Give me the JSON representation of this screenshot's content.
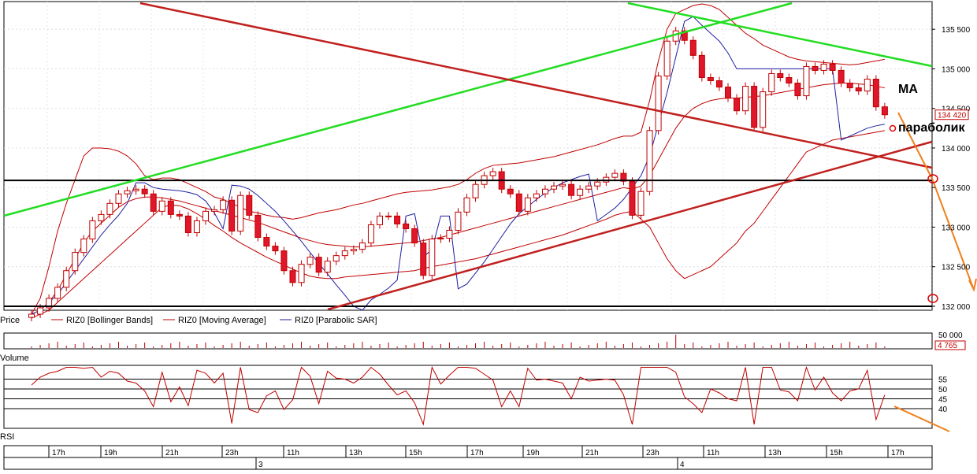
{
  "legend": {
    "price_label": "Price",
    "items": [
      {
        "label": "RIZ0 [Bollinger Bands]",
        "color": "#c00000"
      },
      {
        "label": "RIZ0 [Moving Average]",
        "color": "#c00000"
      },
      {
        "label": "RIZ0 [Parabolic SAR]",
        "color": "#1f1fa0"
      }
    ]
  },
  "annotations": {
    "ma": "MA",
    "parabolic": "параболик"
  },
  "price_axis": {
    "ticks": [
      "135 500",
      "135 000",
      "134 500",
      "134 000",
      "133 500",
      "133 000",
      "132 500",
      "132 000"
    ],
    "last_value": "134 420"
  },
  "volume_panel": {
    "label": "Volume",
    "ticks": [
      "50 000"
    ],
    "last_value": "4 765"
  },
  "rsi_panel": {
    "label": "RSI",
    "ticks": [
      "55",
      "50",
      "45",
      "40"
    ]
  },
  "time_axis": {
    "hours": [
      "17h",
      "19h",
      "21h",
      "23h",
      "11h",
      "13h",
      "15h",
      "17h",
      "19h",
      "21h",
      "23h",
      "11h",
      "13h",
      "15h",
      "17h"
    ],
    "days": [
      "3",
      "4"
    ]
  },
  "colors": {
    "bull": "#ffffff",
    "bear": "#e0162b",
    "candle_outline": "#c00000",
    "bollinger": "#c00000",
    "sar": "#1f1fa0",
    "trend_green": "#22dd22",
    "trend_red": "#c0201e",
    "level": "#000000",
    "forecast": "#f07f1a"
  },
  "chart_data": {
    "type": "candlestick",
    "instrument": "RIZ0",
    "indicators": [
      "Bollinger Bands",
      "Moving Average",
      "Parabolic SAR"
    ],
    "ylim": [
      131950,
      135850
    ],
    "x_labels": [
      "17h",
      "19h",
      "21h",
      "23h",
      "11h",
      "13h",
      "15h",
      "17h",
      "19h",
      "21h",
      "23h",
      "11h",
      "13h",
      "15h",
      "17h"
    ],
    "close": [
      131900,
      131980,
      132100,
      132240,
      132450,
      132680,
      132850,
      133080,
      133160,
      133300,
      133420,
      133460,
      133480,
      133420,
      133200,
      133330,
      133160,
      133140,
      132930,
      133080,
      133200,
      133220,
      133340,
      132950,
      133400,
      133150,
      132870,
      132760,
      132700,
      132450,
      132300,
      132530,
      132620,
      132430,
      132570,
      132640,
      132700,
      132720,
      132800,
      133030,
      133140,
      133140,
      133040,
      132980,
      132800,
      132390,
      132850,
      132860,
      132960,
      133190,
      133370,
      133540,
      133650,
      133700,
      133480,
      133420,
      133200,
      133370,
      133420,
      133480,
      133520,
      133540,
      133400,
      133480,
      133520,
      133570,
      133630,
      133680,
      133580,
      133150,
      133450,
      134220,
      134910,
      135350,
      135480,
      135360,
      135170,
      134890,
      134850,
      134770,
      134630,
      134470,
      134780,
      134260,
      134710,
      134940,
      134890,
      134820,
      134660,
      135030,
      134980,
      135060,
      134980,
      134820,
      134760,
      134720,
      134870,
      134520,
      134420
    ],
    "sar": [
      131900,
      131950,
      132050,
      132150,
      132300,
      132450,
      132600,
      132750,
      132900,
      133030,
      133150,
      133300,
      133560,
      133560,
      133500,
      133480,
      133470,
      133460,
      133440,
      133410,
      133330,
      133180,
      132980,
      133530,
      133520,
      133480,
      133400,
      133300,
      133200,
      133080,
      132950,
      132820,
      132680,
      132540,
      132410,
      132270,
      132140,
      132000,
      131950,
      132080,
      132150,
      132230,
      132330,
      133140,
      133170,
      132620,
      132720,
      133140,
      133140,
      132220,
      132280,
      132420,
      132560,
      132720,
      132880,
      133040,
      133170,
      133260,
      133350,
      133430,
      133500,
      133560,
      133600,
      133640,
      133670,
      133080,
      133160,
      133240,
      133350,
      133500,
      133650,
      133900,
      134300,
      134700,
      135150,
      135600,
      135660,
      135550,
      135450,
      135350,
      135200,
      135000,
      135000,
      135000,
      135000,
      135000,
      135000,
      135000,
      135000,
      135000,
      135000,
      135000,
      135000,
      134100,
      134150,
      134200,
      134250,
      134280,
      134300
    ],
    "bollinger_upper": [
      131900,
      132100,
      132500,
      132950,
      133300,
      133600,
      133900,
      134000,
      134000,
      133990,
      133960,
      133900,
      133800,
      133650,
      133600,
      133620,
      133620,
      133600,
      133550,
      133500,
      133450,
      133380,
      133350,
      133300,
      133250,
      133200,
      133180,
      133150,
      133130,
      133120,
      133100,
      133120,
      133150,
      133180,
      133200,
      133220,
      133250,
      133280,
      133300,
      133330,
      133360,
      133390,
      133420,
      133440,
      133450,
      133460,
      133470,
      133490,
      133510,
      133540,
      133600,
      133680,
      133740,
      133780,
      133790,
      133800,
      133810,
      133830,
      133850,
      133870,
      133890,
      133920,
      133950,
      133980,
      134010,
      134040,
      134080,
      134120,
      134150,
      134150,
      134200,
      134600,
      135100,
      135500,
      135700,
      135750,
      135800,
      135820,
      135800,
      135750,
      135650,
      135550,
      135450,
      135380,
      135300,
      135250,
      135200,
      135150,
      135120,
      135100,
      135090,
      135080,
      135070,
      135060,
      135050,
      135060,
      135080,
      135100,
      135120
    ],
    "bollinger_lower": [
      131850,
      131900,
      131950,
      132050,
      132150,
      132250,
      132350,
      132450,
      132550,
      132650,
      132750,
      132850,
      132950,
      133050,
      133150,
      133250,
      133280,
      133270,
      133230,
      133170,
      133100,
      133020,
      132950,
      132870,
      132800,
      132740,
      132680,
      132620,
      132570,
      132520,
      132470,
      132420,
      132380,
      132360,
      132350,
      132350,
      132370,
      132380,
      132390,
      132400,
      132410,
      132420,
      132430,
      132440,
      132450,
      132480,
      132500,
      132520,
      132540,
      132560,
      132580,
      132600,
      132630,
      132660,
      132690,
      132720,
      132750,
      132780,
      132810,
      132840,
      132870,
      132900,
      132940,
      132980,
      133020,
      133060,
      133100,
      133150,
      133180,
      133200,
      133100,
      133000,
      132800,
      132600,
      132450,
      132350,
      132400,
      132450,
      132500,
      132600,
      132700,
      132800,
      132950,
      133050,
      133200,
      133350,
      133500,
      133650,
      133800,
      133950,
      134000,
      134050,
      134100,
      134120,
      134140,
      134160,
      134180,
      134200,
      134220
    ],
    "moving_average": [
      131900,
      131950,
      132050,
      132200,
      132400,
      132600,
      132800,
      132950,
      133050,
      133150,
      133250,
      133320,
      133360,
      133380,
      133380,
      133370,
      133350,
      133330,
      133300,
      133270,
      133240,
      133210,
      133180,
      133150,
      133120,
      133090,
      133060,
      133020,
      132980,
      132940,
      132900,
      132860,
      132830,
      132800,
      132780,
      132770,
      132760,
      132750,
      132750,
      132760,
      132770,
      132780,
      132790,
      132800,
      132810,
      132830,
      132850,
      132870,
      132900,
      132930,
      132960,
      132990,
      133020,
      133050,
      133080,
      133110,
      133140,
      133170,
      133200,
      133230,
      133260,
      133290,
      133320,
      133350,
      133380,
      133410,
      133440,
      133470,
      133500,
      133480,
      133520,
      133650,
      133850,
      134050,
      134250,
      134400,
      134500,
      134560,
      134600,
      134620,
      134630,
      134630,
      134640,
      134650,
      134660,
      134680,
      134700,
      134720,
      134740,
      134760,
      134780,
      134800,
      134810,
      134820,
      134820,
      134810,
      134800,
      134780,
      134760
    ],
    "rsi_ylim": [
      30,
      62
    ],
    "rsi_levels": [
      55,
      50,
      45,
      40
    ]
  }
}
